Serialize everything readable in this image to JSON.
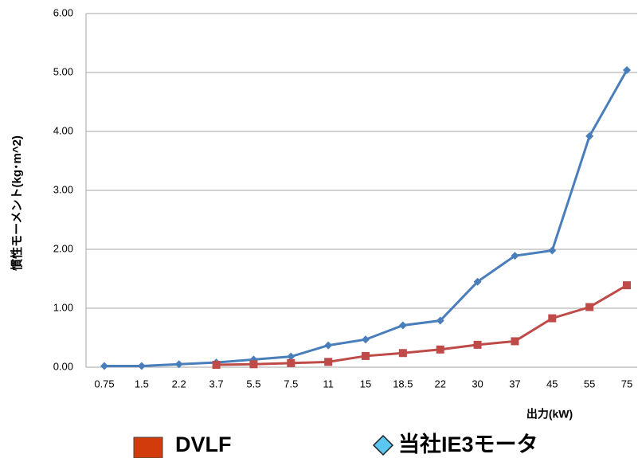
{
  "chart_data": {
    "type": "line",
    "y_label": "慣性モーメント(kg･m^2)",
    "x_label": "出力(kW)",
    "categories": [
      "0.75",
      "1.5",
      "2.2",
      "3.7",
      "5.5",
      "7.5",
      "11",
      "15",
      "18.5",
      "22",
      "30",
      "37",
      "45",
      "55",
      "75"
    ],
    "series": [
      {
        "name": "当社IE3モータ",
        "color": "#4a7ebb",
        "legend_color": "#5bc6f0",
        "marker": "diamond",
        "values": [
          0.02,
          0.02,
          0.05,
          0.08,
          0.13,
          0.18,
          0.37,
          0.47,
          0.71,
          0.79,
          1.45,
          1.89,
          1.98,
          3.92,
          5.04
        ]
      },
      {
        "name": "DVLF",
        "color": "#be4b48",
        "legend_color": "#d23c0c",
        "marker": "square",
        "values": [
          null,
          null,
          null,
          0.04,
          0.05,
          0.07,
          0.09,
          0.19,
          0.24,
          0.3,
          0.38,
          0.44,
          0.83,
          1.02,
          1.39
        ]
      }
    ],
    "ylim": [
      0,
      6
    ],
    "yticks": [
      {
        "value": 0,
        "label": "0.00"
      },
      {
        "value": 1,
        "label": "1.00"
      },
      {
        "value": 2,
        "label": "2.00"
      },
      {
        "value": 3,
        "label": "3.00"
      },
      {
        "value": 4,
        "label": "4.00"
      },
      {
        "value": 5,
        "label": "5.00"
      },
      {
        "value": 6,
        "label": "6.00"
      }
    ],
    "grid": true
  }
}
